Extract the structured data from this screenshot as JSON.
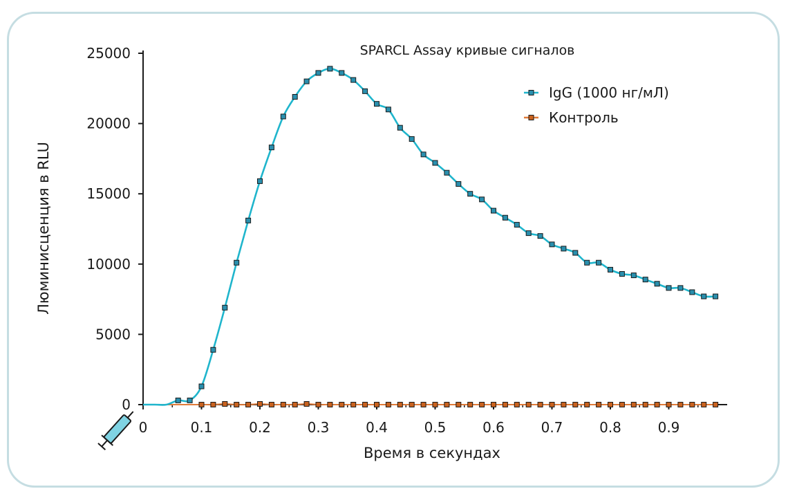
{
  "chart_data": {
    "type": "line",
    "title": "SPARCL Assay кривые сигналов",
    "xlabel": "Время в секундах",
    "ylabel": "Люминисценция в RLU",
    "xlim": [
      0,
      1.0
    ],
    "ylim": [
      0,
      25000
    ],
    "x_ticks": [
      "0",
      "0.1",
      "0.2",
      "0.3",
      "0.4",
      "0.5",
      "0.6",
      "0.7",
      "0.8",
      "0.9"
    ],
    "y_ticks": [
      "0",
      "5000",
      "10000",
      "15000",
      "20000",
      "25000"
    ],
    "legend_position": "top-right",
    "series": [
      {
        "name": "IgG (1000 нг/мЛ)",
        "color": "#1fb5cc",
        "marker_color": "#2a8fae",
        "x": [
          0.0,
          0.02,
          0.04,
          0.06,
          0.08,
          0.1,
          0.12,
          0.14,
          0.16,
          0.18,
          0.2,
          0.22,
          0.24,
          0.26,
          0.28,
          0.3,
          0.32,
          0.34,
          0.36,
          0.38,
          0.4,
          0.42,
          0.44,
          0.46,
          0.48,
          0.5,
          0.52,
          0.54,
          0.56,
          0.58,
          0.6,
          0.62,
          0.64,
          0.66,
          0.68,
          0.7,
          0.72,
          0.74,
          0.76,
          0.78,
          0.8,
          0.82,
          0.84,
          0.86,
          0.88,
          0.9,
          0.92,
          0.94,
          0.96,
          0.98
        ],
        "y": [
          0,
          0,
          0,
          300,
          300,
          1300,
          3900,
          6900,
          10100,
          13100,
          15900,
          18300,
          20500,
          21900,
          23000,
          23600,
          23900,
          23600,
          23100,
          22300,
          21400,
          21000,
          19700,
          18900,
          17800,
          17200,
          16500,
          15700,
          15000,
          14600,
          13800,
          13300,
          12800,
          12200,
          12000,
          11400,
          11100,
          10800,
          10100,
          10100,
          9600,
          9300,
          9200,
          8900,
          8600,
          8300,
          8300,
          8000,
          7700,
          7700
        ],
        "markers_from_index": 3
      },
      {
        "name": "Контроль",
        "color": "#e07b39",
        "marker_color": "#c9621f",
        "x": [
          0.0,
          0.02,
          0.04,
          0.06,
          0.08,
          0.1,
          0.12,
          0.14,
          0.16,
          0.18,
          0.2,
          0.22,
          0.24,
          0.26,
          0.28,
          0.3,
          0.32,
          0.34,
          0.36,
          0.38,
          0.4,
          0.42,
          0.44,
          0.46,
          0.48,
          0.5,
          0.52,
          0.54,
          0.56,
          0.58,
          0.6,
          0.62,
          0.64,
          0.66,
          0.68,
          0.7,
          0.72,
          0.74,
          0.76,
          0.78,
          0.8,
          0.82,
          0.84,
          0.86,
          0.88,
          0.9,
          0.92,
          0.94,
          0.96,
          0.98
        ],
        "y": [
          0,
          0,
          0,
          0,
          0,
          0,
          0,
          50,
          0,
          0,
          50,
          0,
          0,
          0,
          50,
          0,
          0,
          0,
          0,
          0,
          0,
          0,
          0,
          0,
          0,
          0,
          0,
          0,
          0,
          0,
          0,
          0,
          0,
          0,
          0,
          0,
          0,
          0,
          0,
          0,
          0,
          0,
          0,
          0,
          0,
          0,
          0,
          0,
          0,
          0
        ],
        "markers_from_index": 5
      }
    ],
    "injector_icon": "syringe-icon"
  }
}
